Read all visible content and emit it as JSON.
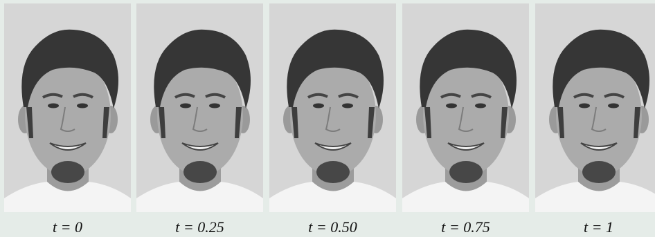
{
  "panels": [
    {
      "caption": "t = 0"
    },
    {
      "caption": "t = 0.25"
    },
    {
      "caption": "t = 0.50"
    },
    {
      "caption": "t = 0.75"
    },
    {
      "caption": "t = 1"
    }
  ]
}
